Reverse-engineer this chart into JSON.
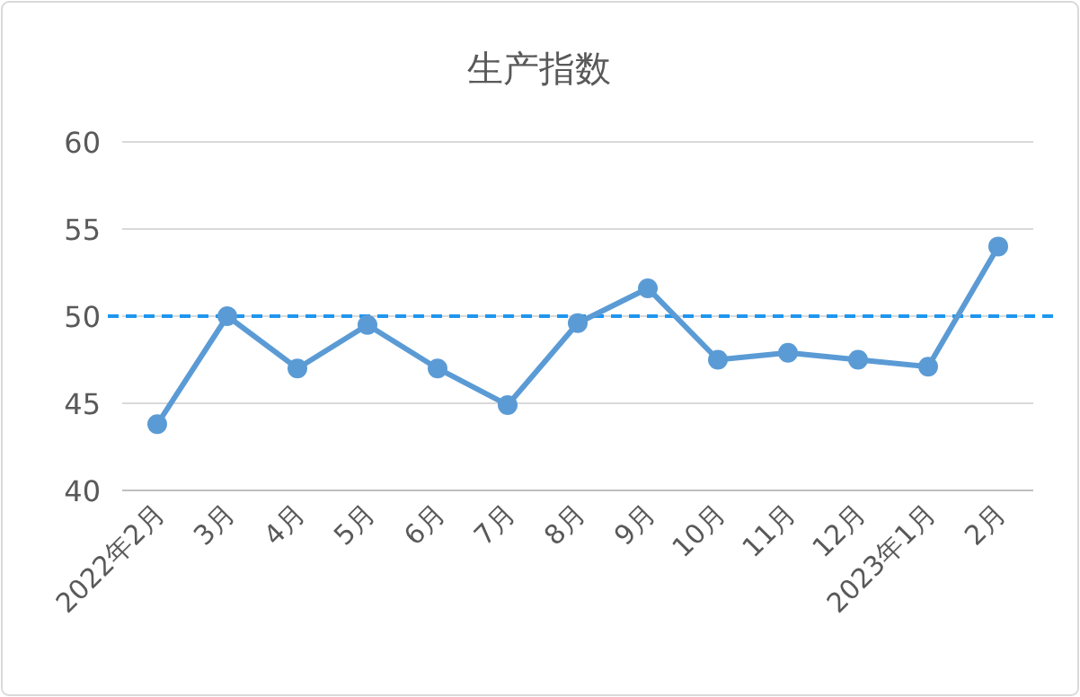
{
  "chart_data": {
    "type": "line",
    "title": "生产指数",
    "categories": [
      "2022年2月",
      "3月",
      "4月",
      "5月",
      "6月",
      "7月",
      "8月",
      "9月",
      "10月",
      "11月",
      "12月",
      "2023年1月",
      "2月"
    ],
    "series": [
      {
        "color": "#5b9bd5",
        "values": [
          43.8,
          50.0,
          47.0,
          49.5,
          47.0,
          44.9,
          49.6,
          51.6,
          47.5,
          47.9,
          47.5,
          47.1,
          54.0
        ]
      }
    ],
    "ylim": [
      40,
      60
    ],
    "yticks": [
      40,
      45,
      50,
      55,
      60
    ],
    "grid": "y",
    "marker": "circle",
    "line_style": "solid",
    "ref_lines": [
      {
        "axis": "y",
        "value": 50,
        "color": "#1e96f0",
        "line_style": "dashed"
      }
    ]
  }
}
